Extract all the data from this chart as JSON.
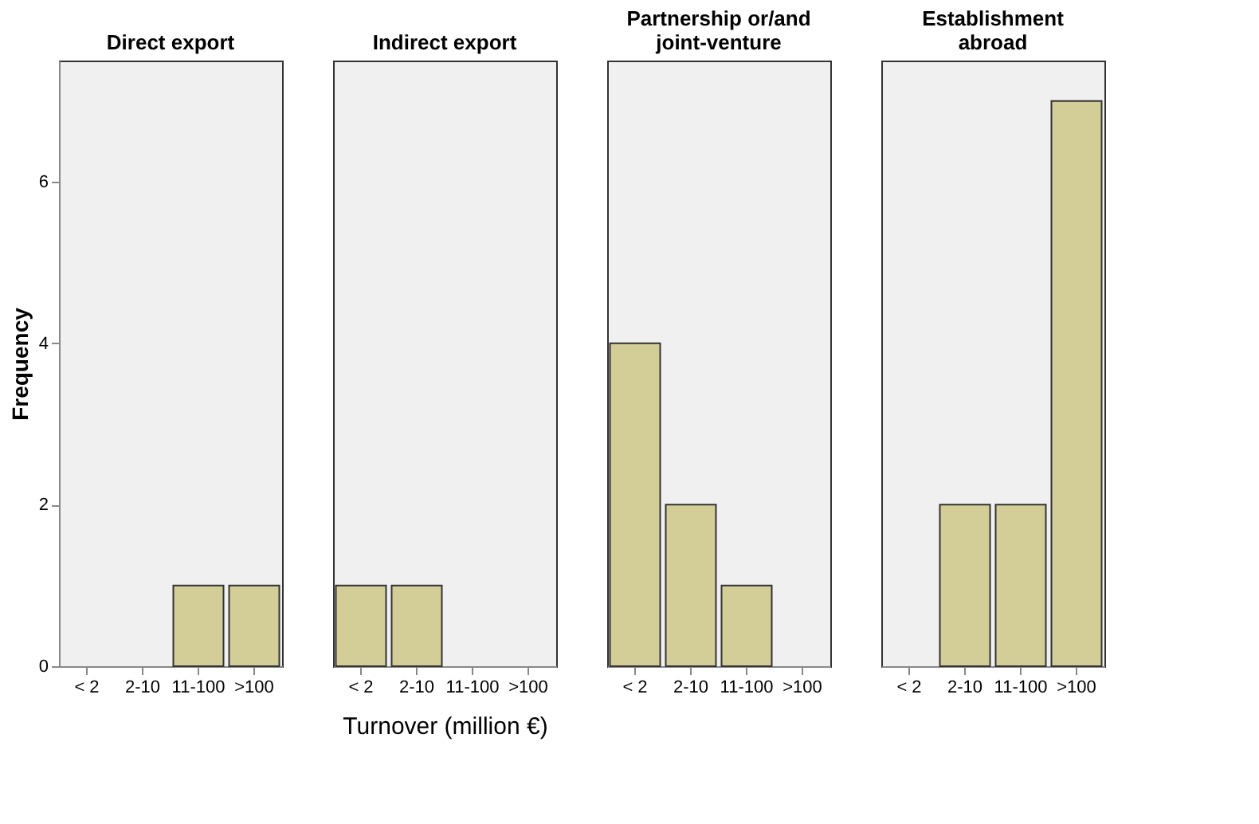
{
  "chart_data": [
    {
      "type": "bar",
      "title": "Direct export",
      "ylabel": "Frequency",
      "categories": [
        "< 2",
        "2-10",
        "11-100",
        ">100"
      ],
      "values": [
        0,
        0,
        1,
        1
      ],
      "color": "#d3ce97",
      "ylim": [
        0,
        7.5
      ],
      "yticks": [
        0,
        2,
        4,
        6
      ],
      "grid": false
    },
    {
      "type": "bar",
      "title": "Indirect export",
      "xlabel": "Turnover (million €)",
      "categories": [
        "< 2",
        "2-10",
        "11-100",
        ">100"
      ],
      "values": [
        1,
        1,
        0,
        0
      ],
      "color": "#d3ce97",
      "ylim": [
        0,
        7.5
      ],
      "yticks": [
        0,
        2,
        4,
        6
      ],
      "grid": false,
      "tick_labels": "x"
    },
    {
      "type": "bar",
      "title": "Partnership or/and joint-venture",
      "categories": [
        "< 2",
        "2-10",
        "11-100",
        ">100"
      ],
      "values": [
        4,
        2,
        1,
        0
      ],
      "color": "#d3ce97",
      "ylim": [
        0,
        7.5
      ],
      "yticks": [
        0,
        2,
        4,
        6
      ],
      "grid": false,
      "tick_labels": "x"
    },
    {
      "type": "bar",
      "title": "Establishment abroad",
      "categories": [
        "< 2",
        "2-10",
        "11-100",
        ">100"
      ],
      "values": [
        0,
        2,
        2,
        7
      ],
      "color": "#d3ce97",
      "ylim": [
        0,
        7.5
      ],
      "yticks": [
        0,
        2,
        4,
        6
      ],
      "grid": false,
      "tick_labels": "x"
    }
  ]
}
